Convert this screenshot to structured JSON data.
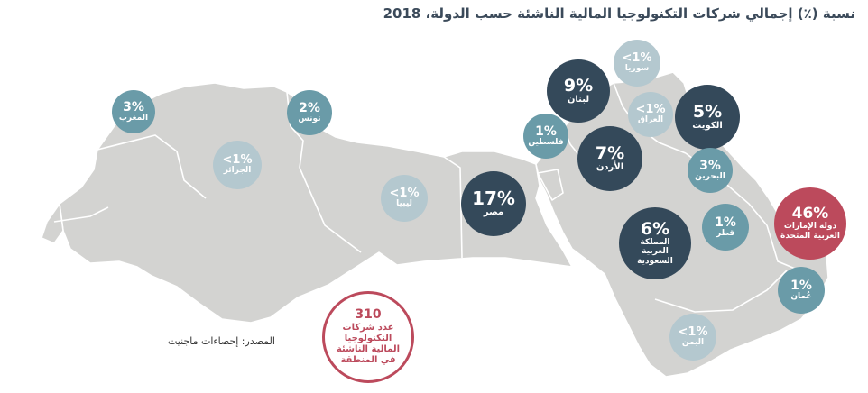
{
  "title": "نسبة (٪) إجمالي شركات التكنولوجيا المالية الناشئة حسب الدولة، 2018",
  "source": "المصدر: إحصاءات ماجنيت",
  "total": {
    "value": "310",
    "label": "عدد شركات التكنولوجيا المالية الناشئة في المنطقة"
  },
  "colors": {
    "dark": "#34495a",
    "teal": "#6a9ba8",
    "faded": "#b4c8cf",
    "highlight": "#bc4a5c",
    "land": "#d3d3d1"
  },
  "countries": {
    "morocco": {
      "value": "3%",
      "name": "المغرب",
      "share": 3
    },
    "algeria": {
      "value": "<1%",
      "name": "الجزائر",
      "share": 0.5
    },
    "tunisia": {
      "value": "2%",
      "name": "تونس",
      "share": 2
    },
    "libya": {
      "value": "<1%",
      "name": "ليبيا",
      "share": 0.5
    },
    "egypt": {
      "value": "17%",
      "name": "مصر",
      "share": 17
    },
    "palestine": {
      "value": "1%",
      "name": "فلسطين",
      "share": 1
    },
    "lebanon": {
      "value": "9%",
      "name": "لبنان",
      "share": 9
    },
    "syria": {
      "value": "<1%",
      "name": "سوريا",
      "share": 0.5
    },
    "jordan": {
      "value": "7%",
      "name": "الأردن",
      "share": 7
    },
    "iraq": {
      "value": "<1%",
      "name": "العراق",
      "share": 0.5
    },
    "kuwait": {
      "value": "5%",
      "name": "الكويت",
      "share": 5
    },
    "bahrain": {
      "value": "3%",
      "name": "البحرين",
      "share": 3
    },
    "saudi": {
      "value": "6%",
      "name": "المملكة العربية السعودية",
      "share": 6
    },
    "qatar": {
      "value": "1%",
      "name": "قطر",
      "share": 1
    },
    "uae": {
      "value": "46%",
      "name": "دولة الإمارات العربية المتحدة",
      "share": 46
    },
    "oman": {
      "value": "1%",
      "name": "عُمان",
      "share": 1
    },
    "yemen": {
      "value": "<1%",
      "name": "اليمن",
      "share": 0.5
    }
  }
}
